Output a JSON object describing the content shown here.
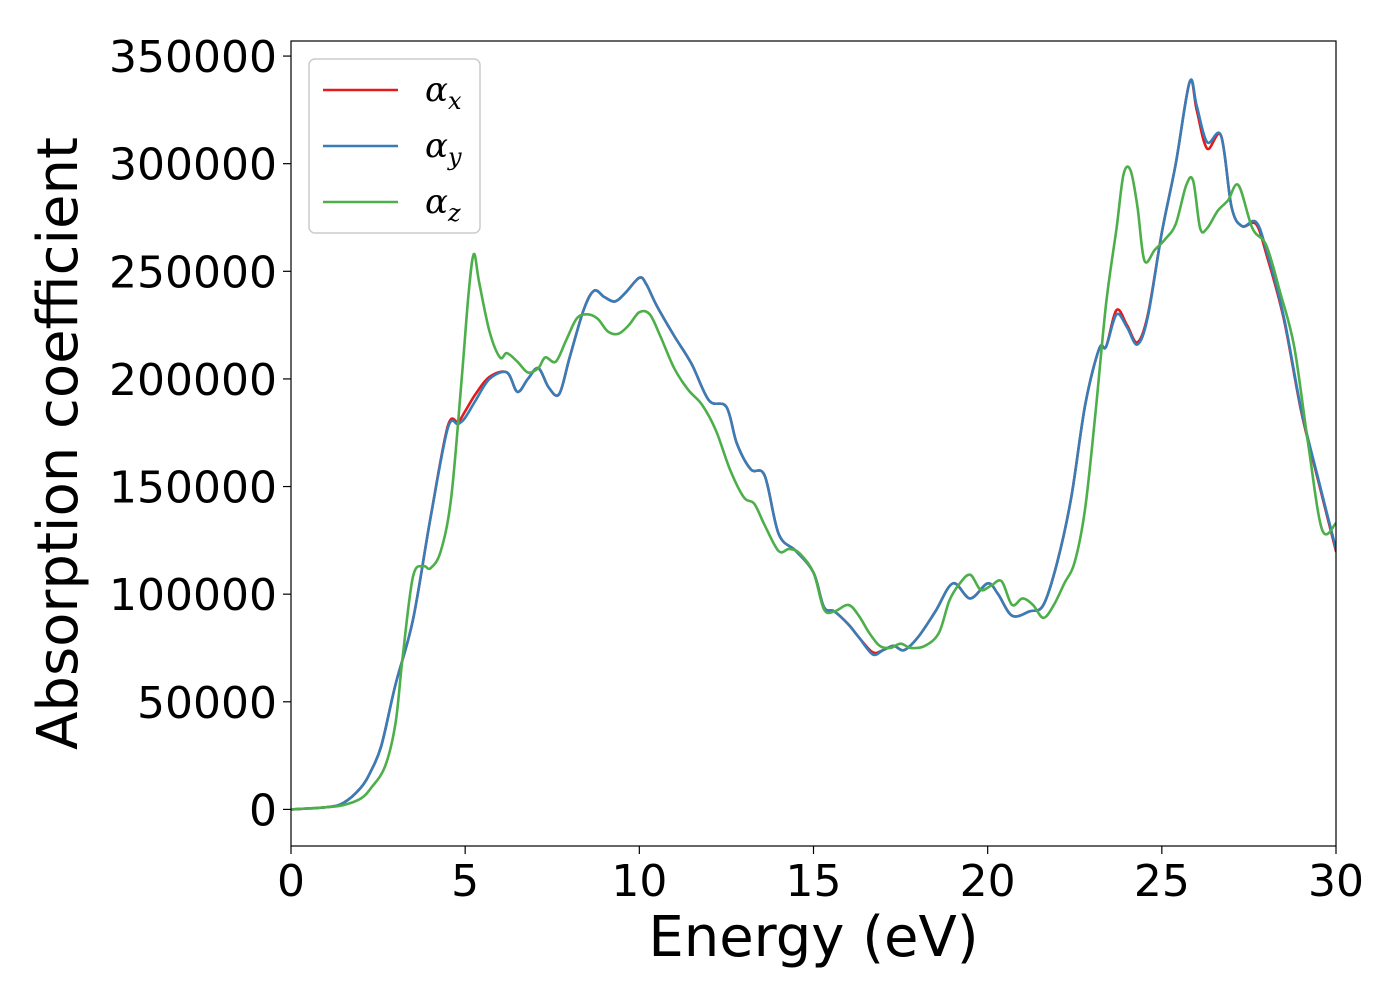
{
  "chart_data": {
    "type": "line",
    "title": "",
    "xlabel": "Energy (eV)",
    "ylabel": "Absorption coefficient",
    "xlim": [
      0,
      30
    ],
    "ylim": [
      -17000,
      357000
    ],
    "xticks": [
      0,
      5,
      10,
      15,
      20,
      25,
      30
    ],
    "yticks": [
      0,
      50000,
      100000,
      150000,
      200000,
      250000,
      300000,
      350000
    ],
    "grid": false,
    "legend": {
      "placement": "top-left"
    },
    "series": [
      {
        "name_symbol": "α",
        "name_sub": "x",
        "color": "#e41a1c",
        "x": [
          0,
          1,
          1.5,
          2,
          2.3,
          2.6,
          3,
          3.5,
          4,
          4.5,
          4.8,
          5,
          5.3,
          5.7,
          6.2,
          6.5,
          6.8,
          7.1,
          7.4,
          7.7,
          8,
          8.4,
          8.7,
          9,
          9.3,
          9.6,
          10,
          10.2,
          10.5,
          11,
          11.5,
          12,
          12.5,
          12.8,
          13.2,
          13.6,
          14,
          14.5,
          15,
          15.3,
          15.6,
          16,
          16.3,
          16.7,
          17,
          17.3,
          17.6,
          18,
          18.5,
          19,
          19.5,
          20,
          20.3,
          20.7,
          21.2,
          21.6,
          22,
          22.4,
          22.8,
          23.2,
          23.4,
          23.7,
          24,
          24.3,
          24.6,
          25,
          25.4,
          25.8,
          26,
          26.3,
          26.7,
          27,
          27.3,
          27.7,
          28,
          28.5,
          29,
          29.5,
          30
        ],
        "y": [
          0,
          1000,
          3000,
          10000,
          18000,
          30000,
          58000,
          88000,
          135000,
          178000,
          180000,
          185000,
          193000,
          201000,
          203000,
          194000,
          200000,
          205000,
          196000,
          193000,
          210000,
          232000,
          241000,
          238000,
          236000,
          240000,
          247000,
          244000,
          234000,
          220000,
          207000,
          190000,
          187000,
          170000,
          158000,
          155000,
          128000,
          120000,
          110000,
          94000,
          92000,
          86000,
          80000,
          73000,
          74000,
          76000,
          74000,
          80000,
          92000,
          105000,
          98000,
          105000,
          100000,
          90000,
          92000,
          95000,
          115000,
          145000,
          188000,
          214000,
          215000,
          232000,
          225000,
          217000,
          230000,
          268000,
          300000,
          338000,
          325000,
          307000,
          313000,
          280000,
          271000,
          272000,
          258000,
          228000,
          185000,
          152000,
          120000
        ]
      },
      {
        "name_symbol": "α",
        "name_sub": "y",
        "color": "#377eb8",
        "x": [
          0,
          1,
          1.5,
          2,
          2.3,
          2.6,
          3,
          3.5,
          4,
          4.5,
          4.8,
          5,
          5.3,
          5.7,
          6.2,
          6.5,
          6.8,
          7.1,
          7.4,
          7.7,
          8,
          8.4,
          8.7,
          9,
          9.3,
          9.6,
          10,
          10.2,
          10.5,
          11,
          11.5,
          12,
          12.5,
          12.8,
          13.2,
          13.6,
          14,
          14.5,
          15,
          15.3,
          15.6,
          16,
          16.3,
          16.7,
          17,
          17.3,
          17.6,
          18,
          18.5,
          19,
          19.5,
          20,
          20.3,
          20.7,
          21.2,
          21.6,
          22,
          22.4,
          22.8,
          23.2,
          23.4,
          23.7,
          24,
          24.3,
          24.6,
          25,
          25.4,
          25.8,
          26,
          26.3,
          26.7,
          27,
          27.3,
          27.7,
          28,
          28.5,
          29,
          29.5,
          30
        ],
        "y": [
          0,
          1000,
          3000,
          10000,
          18000,
          30000,
          58000,
          88000,
          135000,
          177000,
          179000,
          182000,
          190000,
          200000,
          203000,
          194000,
          200000,
          205000,
          196000,
          193000,
          210000,
          232000,
          241000,
          238000,
          236000,
          240000,
          247000,
          244000,
          234000,
          220000,
          207000,
          190000,
          187000,
          170000,
          158000,
          155000,
          128000,
          120000,
          110000,
          94000,
          92000,
          86000,
          80000,
          72000,
          74000,
          76000,
          74000,
          80000,
          92000,
          105000,
          98000,
          105000,
          100000,
          90000,
          92000,
          95000,
          115000,
          145000,
          188000,
          214000,
          215000,
          230000,
          224000,
          216000,
          229000,
          268000,
          300000,
          338000,
          327000,
          310000,
          313000,
          280000,
          271000,
          273000,
          260000,
          229000,
          186000,
          153000,
          121000
        ]
      },
      {
        "name_symbol": "α",
        "name_sub": "z",
        "color": "#4daf4a",
        "x": [
          0,
          1,
          1.5,
          2,
          2.3,
          2.7,
          3,
          3.2,
          3.5,
          3.8,
          4,
          4.3,
          4.6,
          4.9,
          5.1,
          5.25,
          5.4,
          5.7,
          6,
          6.2,
          6.5,
          6.8,
          7.1,
          7.3,
          7.6,
          7.9,
          8.2,
          8.5,
          8.8,
          9.1,
          9.4,
          9.7,
          10,
          10.3,
          10.6,
          11,
          11.4,
          11.8,
          12.2,
          12.6,
          13,
          13.3,
          13.6,
          14,
          14.3,
          14.6,
          15,
          15.3,
          15.6,
          16,
          16.3,
          16.6,
          16.9,
          17.2,
          17.5,
          17.8,
          18.2,
          18.6,
          18.9,
          19.2,
          19.5,
          19.8,
          20.1,
          20.4,
          20.7,
          21,
          21.3,
          21.6,
          21.9,
          22.2,
          22.5,
          22.8,
          23.1,
          23.4,
          23.7,
          23.9,
          24.1,
          24.3,
          24.5,
          24.8,
          25.1,
          25.4,
          25.7,
          25.9,
          26.1,
          26.3,
          26.6,
          26.9,
          27.2,
          27.6,
          28,
          28.4,
          28.8,
          29.2,
          29.6,
          30
        ],
        "y": [
          0,
          1000,
          2000,
          5000,
          10000,
          20000,
          40000,
          70000,
          108000,
          113000,
          112000,
          120000,
          145000,
          200000,
          240000,
          258000,
          245000,
          222000,
          210000,
          212000,
          208000,
          203000,
          205000,
          210000,
          208000,
          218000,
          228000,
          230000,
          228000,
          222000,
          221000,
          225000,
          231000,
          230000,
          220000,
          205000,
          195000,
          188000,
          176000,
          158000,
          145000,
          142000,
          132000,
          120000,
          121000,
          119000,
          110000,
          93000,
          92000,
          95000,
          90000,
          82000,
          76000,
          75000,
          77000,
          75000,
          76000,
          82000,
          97000,
          105000,
          109000,
          102000,
          104000,
          106000,
          95000,
          98000,
          95000,
          89000,
          95000,
          105000,
          115000,
          140000,
          185000,
          235000,
          270000,
          295000,
          297000,
          280000,
          255000,
          260000,
          265000,
          272000,
          290000,
          292000,
          270000,
          270000,
          278000,
          283000,
          290000,
          270000,
          262000,
          240000,
          215000,
          170000,
          130000,
          133000
        ]
      }
    ]
  }
}
